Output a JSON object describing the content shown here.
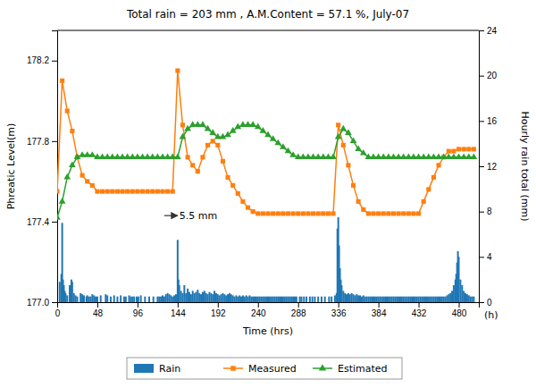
{
  "chart_data": {
    "type": "line",
    "title": "Total rain = 203 mm ,  A.M.Content = 57.1 %, July-07",
    "xlabel": "Time (hrs)",
    "ylabel": "Phreatic Level(m)",
    "y2label": "Hourly rain total (mm)",
    "annotations": [
      {
        "text": "5.5 mm",
        "x": 146,
        "y": 177.43,
        "arrow_from": [
          128,
          177.43
        ],
        "arrow_to": [
          144,
          177.43
        ]
      },
      {
        "text": "(h)"
      }
    ],
    "xlim": [
      0,
      504
    ],
    "xticks": [
      0,
      48,
      96,
      144,
      192,
      240,
      288,
      336,
      384,
      432,
      480
    ],
    "ylim": [
      177.0,
      178.35
    ],
    "yticks": [
      {
        "value": 177.0,
        "label": "177.0"
      },
      177.4,
      177.8,
      178.2
    ],
    "y2lim": [
      0,
      24
    ],
    "y2ticks": [
      0,
      4,
      8,
      12,
      16,
      20,
      24
    ],
    "grid": false,
    "legend": "bottom",
    "series": [
      {
        "name": "Rain",
        "type": "bar",
        "axis": "y2",
        "x": [
          3,
          5,
          6,
          7,
          8,
          9,
          10,
          12,
          15,
          17,
          18,
          20,
          22,
          24,
          28,
          30,
          32,
          35,
          36,
          38,
          40,
          42,
          44,
          46,
          48,
          52,
          58,
          60,
          64,
          68,
          72,
          76,
          80,
          82,
          86,
          88,
          90,
          92,
          95,
          97,
          100,
          105,
          110,
          115,
          120,
          122,
          124,
          126,
          128,
          130,
          132,
          134,
          136,
          138,
          140,
          142,
          144,
          145,
          146,
          148,
          150,
          152,
          154,
          156,
          158,
          160,
          162,
          164,
          166,
          168,
          170,
          172,
          174,
          176,
          178,
          180,
          182,
          184,
          186,
          188,
          190,
          192,
          194,
          196,
          198,
          200,
          202,
          204,
          206,
          208,
          210,
          212,
          214,
          216,
          218,
          220,
          222,
          224,
          226,
          228,
          230,
          232,
          234,
          236,
          238,
          240,
          242,
          244,
          246,
          248,
          250,
          252,
          254,
          256,
          258,
          260,
          262,
          264,
          266,
          268,
          270,
          272,
          274,
          276,
          278,
          280,
          282,
          284,
          286,
          290,
          292,
          295,
          298,
          302,
          305,
          308,
          312,
          316,
          320,
          325,
          328,
          332,
          334,
          335,
          336,
          337,
          338,
          339,
          340,
          342,
          344,
          346,
          348,
          350,
          352,
          354,
          356,
          358,
          360,
          362,
          364,
          366,
          368,
          370,
          372,
          374,
          376,
          378,
          380,
          382,
          384,
          386,
          388,
          390,
          392,
          394,
          396,
          398,
          400,
          402,
          404,
          406,
          408,
          410,
          412,
          414,
          416,
          418,
          420,
          422,
          424,
          426,
          428,
          430,
          432,
          434,
          436,
          438,
          440,
          442,
          444,
          446,
          448,
          450,
          452,
          454,
          456,
          458,
          460,
          462,
          464,
          466,
          468,
          470,
          472,
          474,
          476,
          477,
          478,
          479,
          480,
          482,
          484,
          486,
          488,
          490,
          492,
          494,
          496,
          498
        ],
        "values": [
          1.8,
          2.5,
          7.0,
          2.0,
          1.5,
          1.0,
          0.8,
          0.6,
          1.5,
          2.0,
          1.8,
          0.8,
          0.6,
          0.5,
          0.8,
          0.7,
          0.6,
          0.5,
          0.6,
          0.5,
          0.5,
          0.7,
          0.6,
          0.5,
          0.5,
          0.6,
          0.7,
          0.6,
          0.5,
          0.6,
          0.5,
          0.6,
          0.5,
          0.5,
          0.6,
          0.5,
          0.5,
          0.5,
          0.5,
          0.5,
          0.6,
          0.5,
          0.5,
          0.5,
          0.5,
          0.5,
          0.5,
          0.6,
          0.5,
          0.7,
          0.8,
          0.7,
          0.6,
          0.5,
          0.6,
          0.7,
          5.5,
          2.0,
          1.5,
          1.0,
          0.8,
          1.5,
          0.8,
          1.2,
          0.9,
          0.7,
          1.0,
          0.8,
          0.9,
          1.1,
          0.8,
          0.7,
          0.9,
          1.0,
          0.8,
          0.7,
          0.9,
          0.8,
          0.7,
          1.0,
          0.8,
          0.7,
          0.6,
          0.7,
          0.8,
          0.7,
          0.6,
          0.7,
          0.8,
          0.7,
          0.6,
          0.5,
          0.6,
          0.5,
          0.6,
          0.5,
          0.6,
          0.5,
          0.6,
          0.5,
          0.6,
          0.5,
          0.5,
          0.5,
          0.5,
          0.5,
          0.5,
          0.5,
          0.5,
          0.5,
          0.5,
          0.5,
          0.5,
          0.5,
          0.5,
          0.5,
          0.5,
          0.5,
          0.5,
          0.5,
          0.5,
          0.5,
          0.5,
          0.5,
          0.5,
          0.5,
          0.5,
          0.5,
          0.5,
          0.5,
          0.5,
          0.5,
          0.5,
          0.5,
          0.5,
          0.5,
          0.5,
          0.5,
          0.5,
          0.5,
          0.5,
          0.6,
          0.8,
          6.5,
          7.5,
          5.0,
          3.0,
          2.0,
          1.5,
          1.0,
          0.8,
          0.7,
          0.8,
          0.7,
          0.8,
          0.7,
          0.6,
          0.7,
          0.6,
          0.6,
          0.5,
          0.6,
          0.5,
          0.5,
          0.5,
          0.5,
          0.5,
          0.5,
          0.5,
          0.5,
          0.5,
          0.5,
          0.5,
          0.5,
          0.5,
          0.5,
          0.5,
          0.5,
          0.5,
          0.5,
          0.5,
          0.5,
          0.5,
          0.5,
          0.5,
          0.5,
          0.5,
          0.5,
          0.5,
          0.5,
          0.5,
          0.5,
          0.5,
          0.5,
          0.5,
          0.5,
          0.5,
          0.5,
          0.5,
          0.5,
          0.5,
          0.5,
          0.5,
          0.5,
          0.5,
          0.5,
          0.5,
          0.5,
          0.5,
          0.5,
          0.5,
          0.6,
          0.7,
          0.8,
          1.0,
          1.5,
          2.0,
          2.5,
          3.5,
          4.5,
          4.0,
          2.0,
          1.5,
          1.0,
          0.8,
          0.7,
          0.6,
          0.5,
          0.5,
          0.5
        ]
      },
      {
        "name": "Measured",
        "type": "line",
        "marker": "square",
        "x": [
          0,
          6,
          12,
          18,
          24,
          30,
          36,
          42,
          48,
          54,
          60,
          66,
          72,
          78,
          84,
          90,
          96,
          102,
          108,
          114,
          120,
          126,
          132,
          138,
          144,
          150,
          156,
          162,
          168,
          174,
          180,
          186,
          192,
          198,
          204,
          210,
          216,
          222,
          228,
          234,
          240,
          246,
          252,
          258,
          264,
          270,
          276,
          282,
          288,
          294,
          300,
          306,
          312,
          318,
          324,
          330,
          336,
          342,
          348,
          354,
          360,
          366,
          372,
          378,
          384,
          390,
          396,
          402,
          408,
          414,
          420,
          426,
          432,
          438,
          444,
          450,
          456,
          462,
          468,
          474,
          480,
          486,
          492,
          498
        ],
        "values": [
          177.55,
          178.1,
          177.95,
          177.85,
          177.72,
          177.63,
          177.6,
          177.58,
          177.55,
          177.55,
          177.55,
          177.55,
          177.55,
          177.55,
          177.55,
          177.55,
          177.55,
          177.55,
          177.55,
          177.55,
          177.55,
          177.55,
          177.55,
          177.55,
          178.15,
          177.88,
          177.72,
          177.68,
          177.65,
          177.72,
          177.78,
          177.8,
          177.78,
          177.7,
          177.62,
          177.58,
          177.54,
          177.5,
          177.47,
          177.45,
          177.44,
          177.44,
          177.44,
          177.44,
          177.44,
          177.44,
          177.44,
          177.44,
          177.44,
          177.44,
          177.44,
          177.44,
          177.44,
          177.44,
          177.44,
          177.44,
          177.88,
          177.78,
          177.68,
          177.58,
          177.5,
          177.46,
          177.44,
          177.44,
          177.44,
          177.44,
          177.44,
          177.44,
          177.44,
          177.44,
          177.44,
          177.44,
          177.44,
          177.5,
          177.56,
          177.62,
          177.68,
          177.72,
          177.75,
          177.75,
          177.76,
          177.76,
          177.76,
          177.76
        ]
      },
      {
        "name": "Estimated",
        "type": "line",
        "marker": "triangle",
        "x": [
          0,
          6,
          12,
          18,
          24,
          30,
          36,
          42,
          48,
          54,
          60,
          66,
          72,
          78,
          84,
          90,
          96,
          102,
          108,
          114,
          120,
          126,
          132,
          138,
          144,
          150,
          156,
          162,
          168,
          174,
          180,
          186,
          192,
          198,
          204,
          210,
          216,
          222,
          228,
          234,
          240,
          246,
          252,
          258,
          264,
          270,
          276,
          282,
          288,
          294,
          300,
          306,
          312,
          318,
          324,
          330,
          336,
          342,
          348,
          354,
          360,
          366,
          372,
          378,
          384,
          390,
          396,
          402,
          408,
          414,
          420,
          426,
          432,
          438,
          444,
          450,
          456,
          462,
          468,
          474,
          480,
          486,
          492,
          498
        ],
        "values": [
          177.42,
          177.5,
          177.62,
          177.68,
          177.72,
          177.73,
          177.73,
          177.73,
          177.72,
          177.72,
          177.72,
          177.72,
          177.72,
          177.72,
          177.72,
          177.72,
          177.72,
          177.72,
          177.72,
          177.72,
          177.72,
          177.72,
          177.72,
          177.72,
          177.72,
          177.82,
          177.86,
          177.88,
          177.88,
          177.88,
          177.86,
          177.84,
          177.82,
          177.82,
          177.83,
          177.85,
          177.87,
          177.88,
          177.88,
          177.88,
          177.87,
          177.85,
          177.83,
          177.81,
          177.79,
          177.77,
          177.75,
          177.73,
          177.72,
          177.72,
          177.72,
          177.72,
          177.72,
          177.72,
          177.72,
          177.72,
          177.82,
          177.86,
          177.84,
          177.8,
          177.76,
          177.74,
          177.72,
          177.72,
          177.72,
          177.72,
          177.72,
          177.72,
          177.72,
          177.72,
          177.72,
          177.72,
          177.72,
          177.72,
          177.72,
          177.72,
          177.72,
          177.72,
          177.72,
          177.72,
          177.72,
          177.72,
          177.72,
          177.72
        ]
      }
    ]
  }
}
